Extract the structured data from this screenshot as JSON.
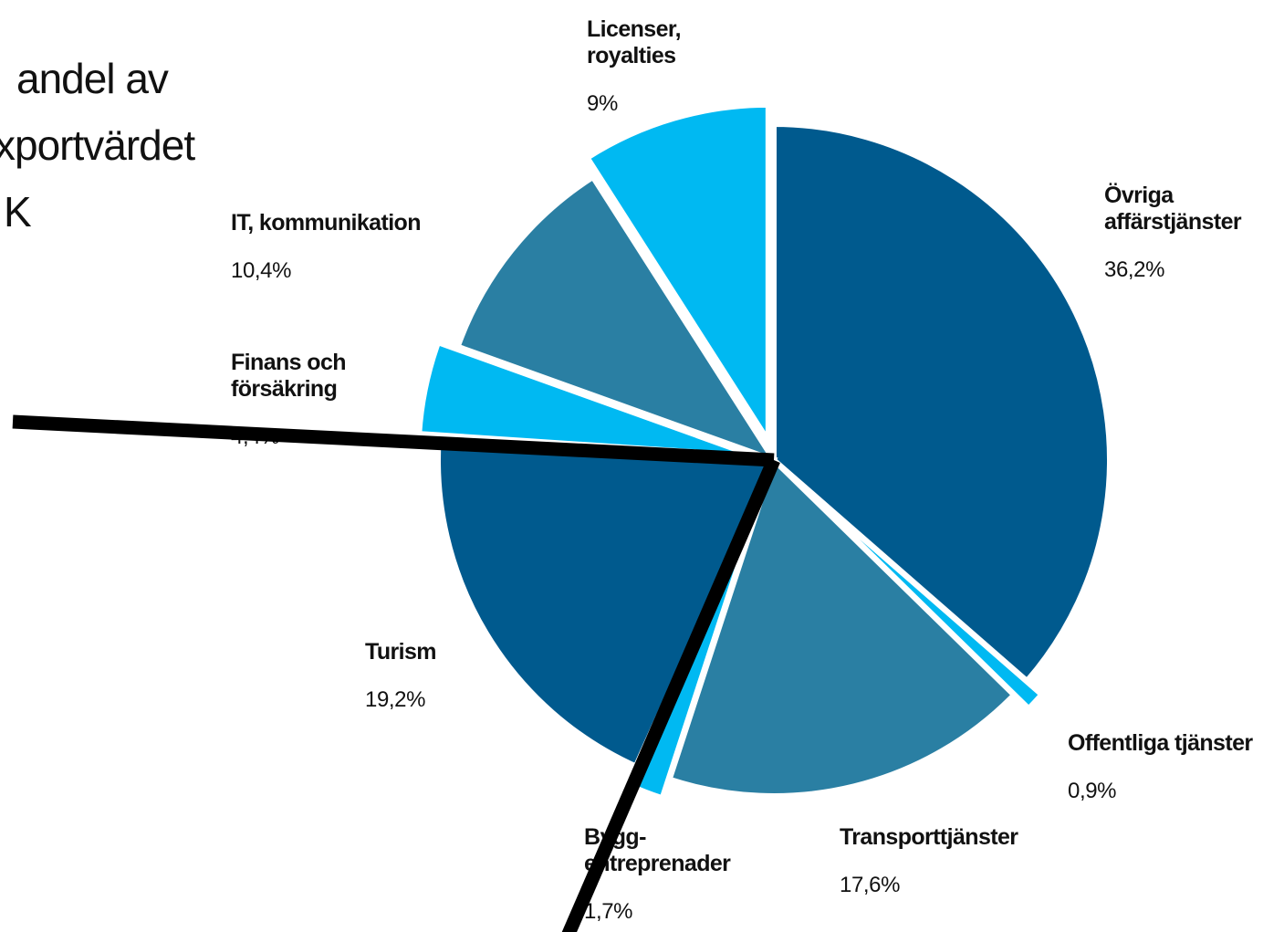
{
  "chart_data": {
    "type": "pie",
    "title_lines": [
      "andel av",
      "xportvärdet",
      "K"
    ],
    "categories": [
      "Övriga affärstjänster",
      "Offentliga tjänster",
      "Transporttjänster",
      "Bygg-entreprenader",
      "Turism",
      "Finans och försäkring",
      "IT, kommunikation",
      "Licenser, royalties"
    ],
    "values": [
      36.2,
      0.9,
      17.6,
      1.7,
      19.2,
      4.4,
      10.4,
      9
    ],
    "value_labels": [
      "36,2%",
      "0,9%",
      "17,6%",
      "1,7%",
      "19,2%",
      "4,4%",
      "10,4%",
      "9%"
    ],
    "colors": [
      "#005a8e",
      "#00b9f2",
      "#2a7fa3",
      "#00b9f2",
      "#005a8e",
      "#00b9f2",
      "#2a7fa3",
      "#00b9f2"
    ],
    "exploded": [
      false,
      true,
      false,
      true,
      false,
      true,
      false,
      true
    ]
  }
}
